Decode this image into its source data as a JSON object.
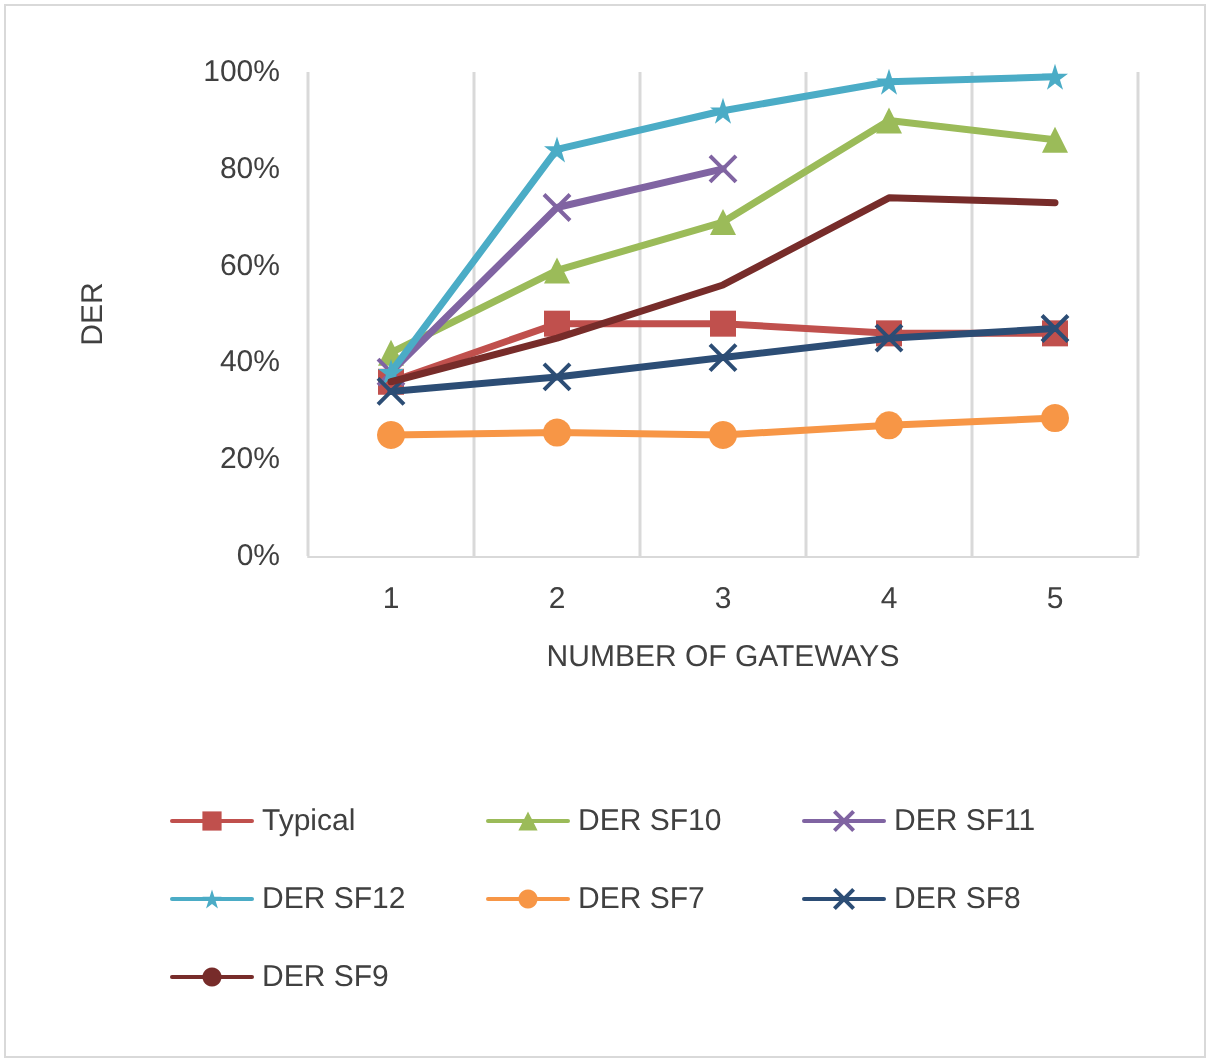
{
  "chart_data": {
    "type": "line",
    "xlabel": "NUMBER OF GATEWAYS",
    "ylabel": "DER",
    "categories": [
      "1",
      "2",
      "3",
      "4",
      "5"
    ],
    "ylim": [
      0,
      100
    ],
    "yticks": [
      {
        "value": 0,
        "label": "0%"
      },
      {
        "value": 20,
        "label": "20%"
      },
      {
        "value": 40,
        "label": "40%"
      },
      {
        "value": 60,
        "label": "60%"
      },
      {
        "value": 80,
        "label": "80%"
      },
      {
        "value": 100,
        "label": "100%"
      }
    ],
    "grid": "x",
    "legend": "bottom",
    "series": [
      {
        "name": "Typical",
        "color": "#c0504d",
        "marker": "square",
        "values": [
          36,
          48,
          48,
          46,
          46
        ]
      },
      {
        "name": "DER SF10",
        "color": "#9bbb59",
        "marker": "triangle",
        "values": [
          42,
          59,
          69,
          90,
          86
        ]
      },
      {
        "name": "DER SF11",
        "color": "#8064a2",
        "marker": "cross",
        "values": [
          38,
          72,
          80,
          null,
          null
        ]
      },
      {
        "name": "DER SF12",
        "color": "#4bacc6",
        "marker": "star",
        "values": [
          38,
          84,
          92,
          98,
          99
        ]
      },
      {
        "name": "DER SF7",
        "color": "#f79646",
        "marker": "circle",
        "values": [
          25,
          25.5,
          25,
          27,
          28.5
        ]
      },
      {
        "name": "DER SF8",
        "color": "#2c4d75",
        "marker": "cross",
        "values": [
          34,
          37,
          41,
          45,
          47
        ]
      },
      {
        "name": "DER SF9",
        "color": "#772c2a",
        "marker": "none",
        "values": [
          36,
          45,
          56,
          74,
          73
        ]
      }
    ]
  }
}
